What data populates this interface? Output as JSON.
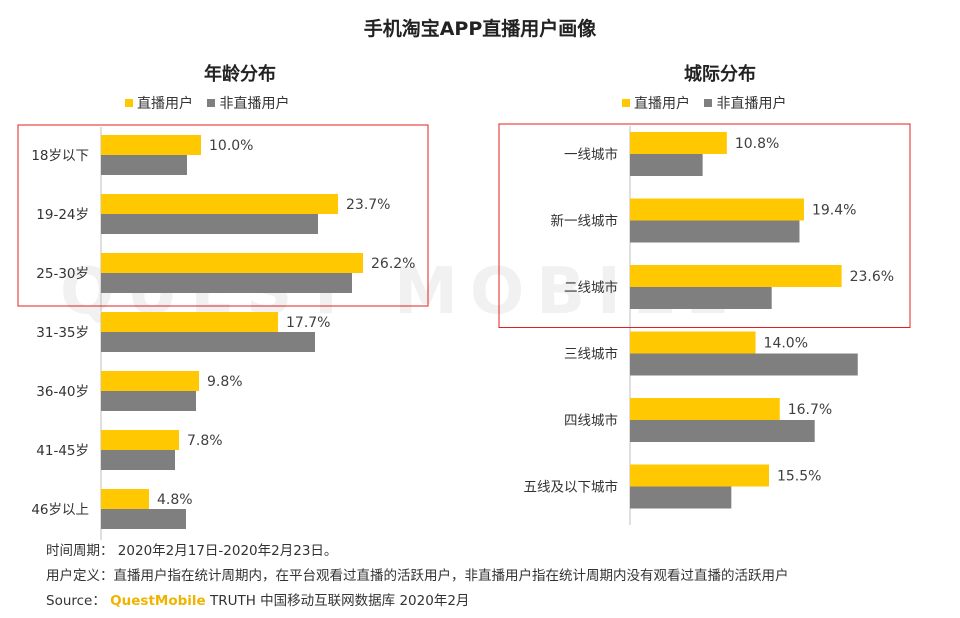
{
  "title": "手机淘宝APP直播用户画像",
  "colors": {
    "live": "#FFC800",
    "nonlive": "#7F7F7F",
    "highlight": "#E02020",
    "axis": "#BFBFBF",
    "label": "#404040",
    "brand": "#F0B400"
  },
  "watermark": "QUEST MOBILE",
  "chart_data": [
    {
      "type": "bar",
      "orientation": "horizontal",
      "title": "年龄分布",
      "categories": [
        "18岁以下",
        "19-24岁",
        "25-30岁",
        "31-35岁",
        "36-40岁",
        "41-45岁",
        "46岁以上"
      ],
      "series": [
        {
          "name": "直播用户",
          "values": [
            10.0,
            23.7,
            26.2,
            17.7,
            9.8,
            7.8,
            4.8
          ],
          "labels": [
            "10.0%",
            "23.7%",
            "26.2%",
            "17.7%",
            "9.8%",
            "7.8%",
            "4.8%"
          ]
        },
        {
          "name": "非直播用户",
          "values": [
            8.6,
            21.7,
            25.1,
            21.4,
            9.5,
            7.4,
            8.5
          ]
        }
      ],
      "xlim": [
        0,
        30
      ],
      "legend_position": "top",
      "highlight_categories": [
        "18岁以下",
        "19-24岁",
        "25-30岁"
      ]
    },
    {
      "type": "bar",
      "orientation": "horizontal",
      "title": "城际分布",
      "categories": [
        "一线城市",
        "新一线城市",
        "二线城市",
        "三线城市",
        "四线城市",
        "五线及以下城市"
      ],
      "series": [
        {
          "name": "直播用户",
          "values": [
            10.8,
            19.4,
            23.6,
            14.0,
            16.7,
            15.5
          ],
          "labels": [
            "10.8%",
            "19.4%",
            "23.6%",
            "14.0%",
            "16.7%",
            "15.5%"
          ]
        },
        {
          "name": "非直播用户",
          "values": [
            8.1,
            18.9,
            15.8,
            25.4,
            20.6,
            11.3
          ]
        }
      ],
      "xlim": [
        0,
        30
      ],
      "legend_position": "top",
      "highlight_categories": [
        "一线城市",
        "新一线城市",
        "二线城市"
      ]
    }
  ],
  "footer": {
    "period_label": "时间周期：",
    "period_value": "2020年2月17日-2020年2月23日。",
    "definition_label": "用户定义：",
    "definition_value": "直播用户指在统计周期内，在平台观看过直播的活跃用户，非直播用户指在统计周期内没有观看过直播的活跃用户",
    "source_label": "Source：",
    "source_brand": "QuestMobile",
    "source_rest": "TRUTH 中国移动互联网数据库 2020年2月"
  }
}
